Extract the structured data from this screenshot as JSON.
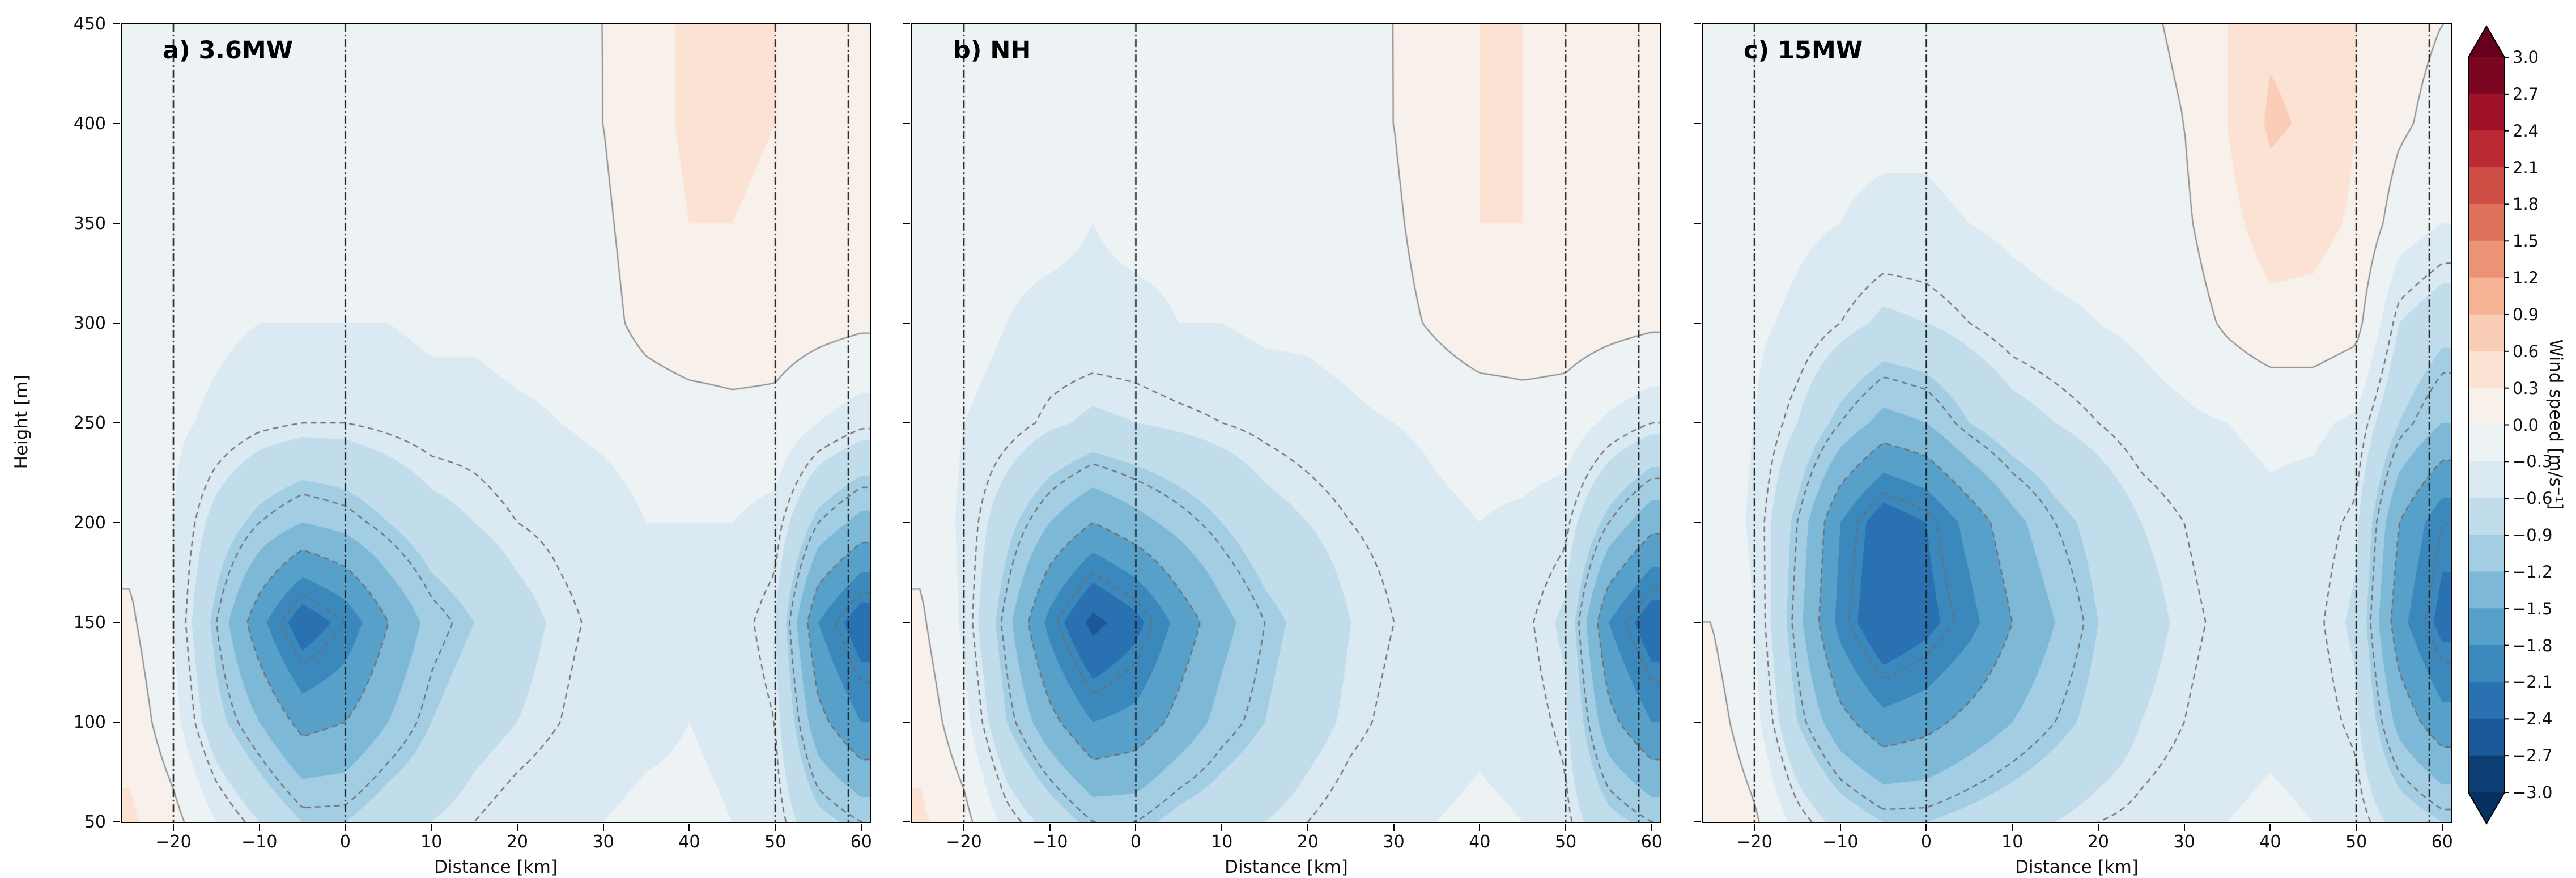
{
  "figure": {
    "xlabel": "Distance [km]",
    "ylabel": "Height [m]",
    "x_range": [
      -26,
      61
    ],
    "y_range": [
      50,
      450
    ],
    "x_ticks": [
      {
        "value": -20,
        "label": "−20"
      },
      {
        "value": -10,
        "label": "−10"
      },
      {
        "value": 0,
        "label": "0"
      },
      {
        "value": 10,
        "label": "10"
      },
      {
        "value": 20,
        "label": "20"
      },
      {
        "value": 30,
        "label": "30"
      },
      {
        "value": 40,
        "label": "40"
      },
      {
        "value": 50,
        "label": "50"
      },
      {
        "value": 60,
        "label": "60"
      }
    ],
    "y_ticks": [
      {
        "value": 50,
        "label": "50"
      },
      {
        "value": 100,
        "label": "100"
      },
      {
        "value": 150,
        "label": "150"
      },
      {
        "value": 200,
        "label": "200"
      },
      {
        "value": 250,
        "label": "250"
      },
      {
        "value": 300,
        "label": "300"
      },
      {
        "value": 350,
        "label": "350"
      },
      {
        "value": 400,
        "label": "400"
      },
      {
        "value": 450,
        "label": "450"
      }
    ],
    "vlines_x": [
      -20,
      0,
      50,
      58.5
    ],
    "contour_lines": {
      "dashed_levels": [
        -2.0,
        -1.5,
        -1.0,
        -0.5
      ],
      "solid_levels": [
        0.0
      ],
      "dashed_color": "#6e6e6e",
      "solid_color": "#8f8f8f"
    },
    "colorbar": {
      "label": "Wind speed [m/s⁻¹]",
      "levels_min": -3.0,
      "levels_max": 3.0,
      "level_step": 0.3,
      "under_color": "#053061",
      "over_color": "#67001f",
      "colors": [
        "#0c3e74",
        "#1a5999",
        "#2a71b2",
        "#3b88bd",
        "#57a0ca",
        "#7eb8d7",
        "#a2cde3",
        "#c1ddeb",
        "#dbe9f2",
        "#edf2f5",
        "#f8f0eb",
        "#fbe2d3",
        "#facdb6",
        "#f6b293",
        "#ec9375",
        "#dd715a",
        "#cd4e44",
        "#bb2a33",
        "#9f1228",
        "#7a0622"
      ],
      "ticks": [
        {
          "value": 3.0,
          "label": "3.0"
        },
        {
          "value": 2.7,
          "label": "2.7"
        },
        {
          "value": 2.4,
          "label": "2.4"
        },
        {
          "value": 2.1,
          "label": "2.1"
        },
        {
          "value": 1.8,
          "label": "1.8"
        },
        {
          "value": 1.5,
          "label": "1.5"
        },
        {
          "value": 1.2,
          "label": "1.2"
        },
        {
          "value": 0.9,
          "label": "0.9"
        },
        {
          "value": 0.6,
          "label": "0.6"
        },
        {
          "value": 0.3,
          "label": "0.3"
        },
        {
          "value": 0.0,
          "label": "0.0"
        },
        {
          "value": -0.3,
          "label": "−0.3"
        },
        {
          "value": -0.6,
          "label": "−0.6"
        },
        {
          "value": -0.9,
          "label": "−0.9"
        },
        {
          "value": -1.2,
          "label": "−1.2"
        },
        {
          "value": -1.5,
          "label": "−1.5"
        },
        {
          "value": -1.8,
          "label": "−1.8"
        },
        {
          "value": -2.1,
          "label": "−2.1"
        },
        {
          "value": -2.4,
          "label": "−2.4"
        },
        {
          "value": -2.7,
          "label": "−2.7"
        },
        {
          "value": -3.0,
          "label": "−3.0"
        }
      ]
    }
  },
  "chart_data": {
    "type": "contour",
    "x_units": "km",
    "y_units": "m",
    "value_units": "m/s",
    "x": [
      -25,
      -20,
      -15,
      -10,
      -5,
      0,
      5,
      10,
      15,
      20,
      25,
      30,
      35,
      40,
      45,
      50,
      55,
      60
    ],
    "y": [
      50,
      100,
      150,
      200,
      250,
      300,
      350,
      400,
      450
    ],
    "panels": [
      {
        "id": "a",
        "label": "a) 3.6MW",
        "grid": [
          [
            0.35,
            0.1,
            -0.3,
            -0.6,
            -0.9,
            -0.9,
            -0.7,
            -0.6,
            -0.5,
            -0.4,
            -0.35,
            -0.3,
            -0.25,
            -0.25,
            -0.3,
            -0.4,
            -0.8,
            -1.0
          ],
          [
            0.2,
            -0.2,
            -0.8,
            -1.2,
            -1.6,
            -1.5,
            -1.2,
            -0.9,
            -0.7,
            -0.6,
            -0.5,
            -0.4,
            -0.35,
            -0.3,
            -0.35,
            -0.5,
            -1.4,
            -1.8
          ],
          [
            0.05,
            -0.3,
            -1.0,
            -1.7,
            -2.3,
            -2.0,
            -1.5,
            -1.1,
            -0.9,
            -0.7,
            -0.55,
            -0.45,
            -0.4,
            -0.35,
            -0.4,
            -0.6,
            -1.8,
            -2.3
          ],
          [
            -0.1,
            -0.3,
            -0.7,
            -1.0,
            -1.2,
            -1.1,
            -0.9,
            -0.7,
            -0.6,
            -0.5,
            -0.45,
            -0.4,
            -0.3,
            -0.3,
            -0.3,
            -0.4,
            -1.0,
            -1.3
          ],
          [
            -0.15,
            -0.25,
            -0.35,
            -0.45,
            -0.5,
            -0.5,
            -0.45,
            -0.4,
            -0.4,
            -0.35,
            -0.3,
            -0.25,
            -0.2,
            -0.15,
            -0.1,
            -0.1,
            -0.3,
            -0.45
          ],
          [
            -0.15,
            -0.2,
            -0.25,
            -0.3,
            -0.3,
            -0.3,
            -0.3,
            -0.25,
            -0.25,
            -0.2,
            -0.2,
            -0.1,
            0.1,
            0.2,
            0.2,
            0.15,
            0.1,
            0.05
          ],
          [
            -0.15,
            -0.2,
            -0.2,
            -0.25,
            -0.25,
            -0.25,
            -0.2,
            -0.2,
            -0.2,
            -0.15,
            -0.1,
            -0.05,
            0.15,
            0.3,
            0.3,
            0.25,
            0.15,
            0.1
          ],
          [
            -0.1,
            -0.15,
            -0.2,
            -0.2,
            -0.2,
            -0.2,
            -0.2,
            -0.15,
            -0.15,
            -0.1,
            -0.1,
            0.0,
            0.2,
            0.35,
            0.35,
            0.3,
            0.2,
            0.1
          ],
          [
            -0.1,
            -0.1,
            -0.15,
            -0.15,
            -0.2,
            -0.15,
            -0.15,
            -0.1,
            -0.1,
            -0.1,
            -0.05,
            0.0,
            0.2,
            0.35,
            0.35,
            0.3,
            0.2,
            0.1
          ]
        ]
      },
      {
        "id": "b",
        "label": "b) NH",
        "grid": [
          [
            0.35,
            0.1,
            -0.4,
            -0.7,
            -1.0,
            -1.0,
            -0.8,
            -0.7,
            -0.6,
            -0.5,
            -0.4,
            -0.35,
            -0.3,
            -0.25,
            -0.3,
            -0.45,
            -0.8,
            -1.0
          ],
          [
            0.2,
            -0.2,
            -0.9,
            -1.4,
            -1.8,
            -1.7,
            -1.4,
            -1.1,
            -0.9,
            -0.7,
            -0.55,
            -0.45,
            -0.4,
            -0.35,
            -0.4,
            -0.55,
            -1.4,
            -1.8
          ],
          [
            0.05,
            -0.35,
            -1.1,
            -1.9,
            -2.5,
            -2.2,
            -1.7,
            -1.3,
            -1.0,
            -0.8,
            -0.6,
            -0.5,
            -0.45,
            -0.4,
            -0.45,
            -0.65,
            -1.8,
            -2.3
          ],
          [
            -0.1,
            -0.35,
            -0.8,
            -1.2,
            -1.5,
            -1.3,
            -1.1,
            -0.9,
            -0.7,
            -0.6,
            -0.5,
            -0.45,
            -0.35,
            -0.3,
            -0.35,
            -0.45,
            -1.0,
            -1.4
          ],
          [
            -0.15,
            -0.3,
            -0.4,
            -0.55,
            -0.65,
            -0.6,
            -0.55,
            -0.5,
            -0.45,
            -0.4,
            -0.35,
            -0.3,
            -0.25,
            -0.2,
            -0.15,
            -0.15,
            -0.35,
            -0.5
          ],
          [
            -0.15,
            -0.2,
            -0.3,
            -0.35,
            -0.35,
            -0.35,
            -0.3,
            -0.3,
            -0.25,
            -0.25,
            -0.2,
            -0.1,
            0.05,
            0.2,
            0.2,
            0.15,
            0.1,
            0.05
          ],
          [
            -0.15,
            -0.2,
            -0.25,
            -0.25,
            -0.3,
            -0.25,
            -0.25,
            -0.2,
            -0.2,
            -0.15,
            -0.1,
            -0.05,
            0.15,
            0.3,
            0.3,
            0.2,
            0.15,
            0.1
          ],
          [
            -0.1,
            -0.15,
            -0.2,
            -0.2,
            -0.25,
            -0.2,
            -0.2,
            -0.15,
            -0.15,
            -0.1,
            -0.1,
            0.0,
            0.2,
            0.3,
            0.3,
            0.25,
            0.15,
            0.1
          ],
          [
            -0.1,
            -0.1,
            -0.15,
            -0.15,
            -0.2,
            -0.2,
            -0.15,
            -0.1,
            -0.1,
            -0.1,
            -0.05,
            0.0,
            0.15,
            0.3,
            0.3,
            0.25,
            0.15,
            0.1
          ]
        ]
      },
      {
        "id": "c",
        "label": "c) 15MW",
        "grid": [
          [
            0.3,
            0.05,
            -0.4,
            -0.7,
            -0.9,
            -0.9,
            -0.8,
            -0.7,
            -0.6,
            -0.5,
            -0.45,
            -0.4,
            -0.3,
            -0.25,
            -0.3,
            -0.4,
            -0.7,
            -0.9
          ],
          [
            0.15,
            -0.2,
            -0.9,
            -1.4,
            -1.7,
            -1.6,
            -1.4,
            -1.2,
            -1.0,
            -0.8,
            -0.6,
            -0.5,
            -0.4,
            -0.35,
            -0.4,
            -0.55,
            -1.3,
            -1.7
          ],
          [
            0.0,
            -0.3,
            -1.1,
            -1.9,
            -2.4,
            -2.2,
            -1.9,
            -1.5,
            -1.2,
            -0.9,
            -0.7,
            -0.55,
            -0.45,
            -0.4,
            -0.45,
            -0.65,
            -1.7,
            -2.2
          ],
          [
            -0.1,
            -0.35,
            -1.0,
            -1.8,
            -2.3,
            -2.1,
            -1.7,
            -1.3,
            -1.0,
            -0.8,
            -0.6,
            -0.5,
            -0.4,
            -0.35,
            -0.4,
            -0.55,
            -1.5,
            -2.0
          ],
          [
            -0.15,
            -0.3,
            -0.6,
            -1.0,
            -1.3,
            -1.2,
            -0.9,
            -0.7,
            -0.6,
            -0.5,
            -0.4,
            -0.35,
            -0.3,
            -0.25,
            -0.25,
            -0.35,
            -0.9,
            -1.2
          ],
          [
            -0.15,
            -0.25,
            -0.35,
            -0.5,
            -0.65,
            -0.6,
            -0.5,
            -0.4,
            -0.35,
            -0.3,
            -0.25,
            -0.15,
            0.05,
            0.2,
            0.2,
            0.1,
            -0.6,
            -0.8
          ],
          [
            -0.15,
            -0.2,
            -0.25,
            -0.3,
            -0.35,
            -0.35,
            -0.3,
            -0.25,
            -0.2,
            -0.2,
            -0.15,
            -0.05,
            0.2,
            0.45,
            0.4,
            0.25,
            -0.15,
            -0.3
          ],
          [
            -0.1,
            -0.15,
            -0.2,
            -0.25,
            -0.25,
            -0.25,
            -0.2,
            -0.2,
            -0.15,
            -0.15,
            -0.1,
            0.0,
            0.3,
            0.65,
            0.55,
            0.3,
            0.05,
            -0.1
          ],
          [
            -0.1,
            -0.15,
            -0.15,
            -0.2,
            -0.2,
            -0.2,
            -0.2,
            -0.15,
            -0.15,
            -0.1,
            -0.05,
            0.05,
            0.3,
            0.55,
            0.5,
            0.3,
            0.1,
            0.0
          ]
        ]
      }
    ]
  }
}
